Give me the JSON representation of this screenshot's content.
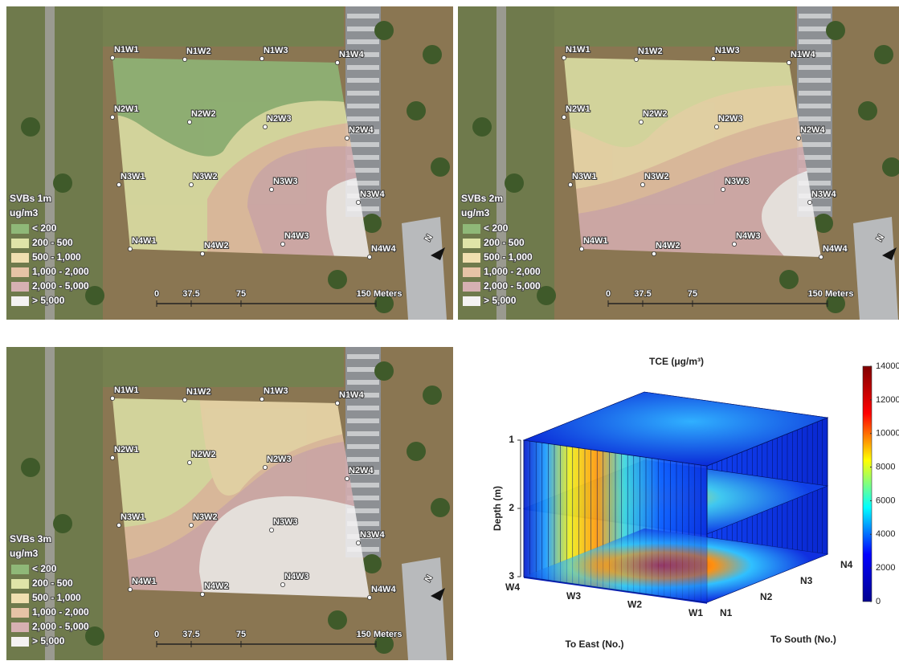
{
  "maps": [
    {
      "title": "SVBs 1m"
    },
    {
      "title": "SVBs 2m"
    },
    {
      "title": "SVBs 3m"
    }
  ],
  "unit": "ug/m3",
  "legend": [
    {
      "label": "< 200",
      "color": "#8fb878"
    },
    {
      "label": "200 - 500",
      "color": "#dfe4a8"
    },
    {
      "label": "500 - 1,000",
      "color": "#f0dfb0"
    },
    {
      "label": "1,000 - 2,000",
      "color": "#e6c3a6"
    },
    {
      "label": "2,000 - 5,000",
      "color": "#d6b0b2"
    },
    {
      "label": "> 5,000",
      "color": "#f4f2f2"
    }
  ],
  "sample_points": [
    "N1W1",
    "N1W2",
    "N1W3",
    "N1W4",
    "N2W1",
    "N2W2",
    "N2W3",
    "N2W4",
    "N3W1",
    "N3W2",
    "N3W3",
    "N3W4",
    "N4W1",
    "N4W2",
    "N4W3",
    "N4W4"
  ],
  "scale_bar": [
    "0",
    "37.5",
    "75",
    "150 Meters"
  ],
  "north": "N",
  "chart_data": {
    "type": "slice3d",
    "title": "TCE (μg/m³)",
    "x_label": "To East (No.)",
    "x_categories": [
      "W4",
      "W3",
      "W2",
      "W1"
    ],
    "y_label": "To South (No.)",
    "y_categories": [
      "N1",
      "N2",
      "N3",
      "N4"
    ],
    "z_label": "Depth (m)",
    "zlim": [
      1,
      3
    ],
    "zticks": [
      1,
      2,
      3
    ],
    "clim": [
      0,
      14000
    ],
    "cticks": [
      0,
      2000,
      4000,
      6000,
      8000,
      10000,
      12000,
      14000
    ],
    "colormap": [
      "#00008f",
      "#0000ff",
      "#00ffff",
      "#ffff00",
      "#ff0000",
      "#800000"
    ]
  }
}
